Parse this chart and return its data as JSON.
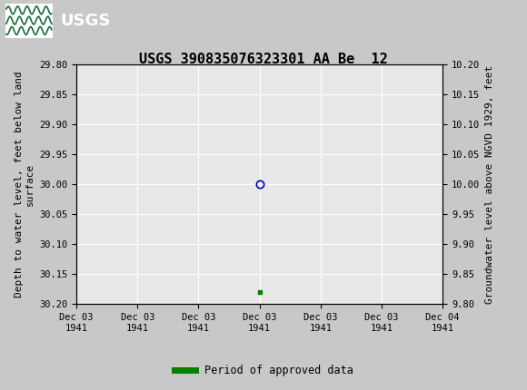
{
  "title": "USGS 390835076323301 AA Be  12",
  "header_bg_color": "#1a6b3c",
  "ylabel_left": "Depth to water level, feet below land\nsurface",
  "ylabel_right": "Groundwater level above NGVD 1929, feet",
  "ylim_left": [
    29.8,
    30.2
  ],
  "ylim_right": [
    9.8,
    10.2
  ],
  "yticks_left": [
    29.8,
    29.85,
    29.9,
    29.95,
    30.0,
    30.05,
    30.1,
    30.15,
    30.2
  ],
  "yticks_right": [
    9.8,
    9.85,
    9.9,
    9.95,
    10.0,
    10.05,
    10.1,
    10.15,
    10.2
  ],
  "x_ticks_hours": [
    0,
    4,
    8,
    12,
    16,
    20,
    24
  ],
  "x_labels": [
    "Dec 03\n1941",
    "Dec 03\n1941",
    "Dec 03\n1941",
    "Dec 03\n1941",
    "Dec 03\n1941",
    "Dec 03\n1941",
    "Dec 04\n1941"
  ],
  "circle_point": {
    "x": 12,
    "depth": 30.0
  },
  "green_point": {
    "x": 12,
    "depth": 30.18
  },
  "legend_label": "Period of approved data",
  "legend_color": "#008000",
  "plot_bg_color": "#e8e8e8",
  "fig_bg_color": "#c8c8c8",
  "grid_color": "#ffffff",
  "tick_label_fontsize": 7.5,
  "axis_label_fontsize": 8,
  "title_fontsize": 11,
  "circle_color": "#0000cc",
  "dot_color": "#008000"
}
